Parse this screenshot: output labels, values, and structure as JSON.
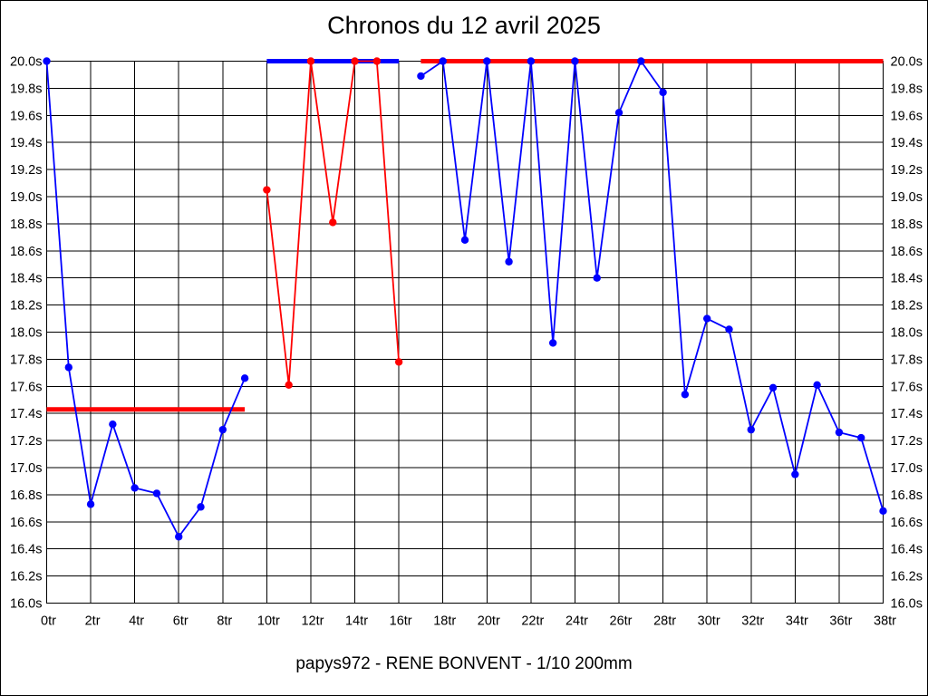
{
  "chart_data": {
    "type": "line",
    "title": "Chronos du 12 avril 2025",
    "caption": "papys972 - RENE BONVENT - 1/10 200mm",
    "x_unit": "tr",
    "y_unit": "s",
    "xlim": [
      0,
      38
    ],
    "ylim": [
      16.0,
      20.0
    ],
    "grid": true,
    "legend": "none",
    "x_ticks": [
      {
        "value": 0,
        "label": "0tr"
      },
      {
        "value": 2,
        "label": "2tr"
      },
      {
        "value": 4,
        "label": "4tr"
      },
      {
        "value": 6,
        "label": "6tr"
      },
      {
        "value": 8,
        "label": "8tr"
      },
      {
        "value": 10,
        "label": "10tr"
      },
      {
        "value": 12,
        "label": "12tr"
      },
      {
        "value": 14,
        "label": "14tr"
      },
      {
        "value": 16,
        "label": "16tr"
      },
      {
        "value": 18,
        "label": "18tr"
      },
      {
        "value": 20,
        "label": "20tr"
      },
      {
        "value": 22,
        "label": "22tr"
      },
      {
        "value": 24,
        "label": "24tr"
      },
      {
        "value": 26,
        "label": "26tr"
      },
      {
        "value": 28,
        "label": "28tr"
      },
      {
        "value": 30,
        "label": "30tr"
      },
      {
        "value": 32,
        "label": "32tr"
      },
      {
        "value": 34,
        "label": "34tr"
      },
      {
        "value": 36,
        "label": "36tr"
      },
      {
        "value": 38,
        "label": "38tr"
      }
    ],
    "y_ticks": [
      {
        "value": 20.0,
        "label": "20.0s"
      },
      {
        "value": 19.8,
        "label": "19.8s"
      },
      {
        "value": 19.6,
        "label": "19.6s"
      },
      {
        "value": 19.4,
        "label": "19.4s"
      },
      {
        "value": 19.2,
        "label": "19.2s"
      },
      {
        "value": 19.0,
        "label": "19.0s"
      },
      {
        "value": 18.8,
        "label": "18.8s"
      },
      {
        "value": 18.6,
        "label": "18.6s"
      },
      {
        "value": 18.4,
        "label": "18.4s"
      },
      {
        "value": 18.2,
        "label": "18.2s"
      },
      {
        "value": 18.0,
        "label": "18.0s"
      },
      {
        "value": 17.8,
        "label": "17.8s"
      },
      {
        "value": 17.6,
        "label": "17.6s"
      },
      {
        "value": 17.4,
        "label": "17.4s"
      },
      {
        "value": 17.2,
        "label": "17.2s"
      },
      {
        "value": 17.0,
        "label": "17.0s"
      },
      {
        "value": 16.8,
        "label": "16.8s"
      },
      {
        "value": 16.6,
        "label": "16.6s"
      },
      {
        "value": 16.4,
        "label": "16.4s"
      },
      {
        "value": 16.2,
        "label": "16.2s"
      },
      {
        "value": 16.0,
        "label": "16.0s"
      }
    ],
    "series_colors": {
      "blue": "#0000ff",
      "red": "#ff0000"
    },
    "segments": [
      {
        "series": "blue",
        "role": "plateau-laps-10-16",
        "x": [
          10,
          11,
          12,
          13,
          14,
          15,
          16
        ],
        "y": [
          20.0,
          20.0,
          20.0,
          20.0,
          20.0,
          20.0,
          20.0
        ],
        "thick": true,
        "markers": false
      },
      {
        "series": "red",
        "role": "flat-line-laps-0-9",
        "x": [
          0,
          9
        ],
        "y": [
          17.43,
          17.43
        ],
        "thick": true,
        "markers": false
      },
      {
        "series": "red",
        "role": "laps-10-16",
        "x": [
          10,
          11,
          12,
          13,
          14,
          15,
          16
        ],
        "y": [
          19.05,
          17.61,
          20.0,
          18.81,
          20.0,
          20.0,
          17.78
        ],
        "thick": false,
        "markers": true
      },
      {
        "series": "red",
        "role": "plateau-laps-17-38",
        "x": [
          17,
          38
        ],
        "y": [
          20.0,
          20.0
        ],
        "thick": true,
        "markers": false
      },
      {
        "series": "blue",
        "role": "laps-0-9",
        "x": [
          0,
          1,
          2,
          3,
          4,
          5,
          6,
          7,
          8,
          9
        ],
        "y": [
          20.0,
          17.74,
          16.73,
          17.32,
          16.85,
          16.81,
          16.49,
          16.71,
          17.28,
          17.66
        ],
        "thick": false,
        "markers": true
      },
      {
        "series": "blue",
        "role": "laps-17-38",
        "x": [
          17,
          18,
          19,
          20,
          21,
          22,
          23,
          24,
          25,
          26,
          27,
          28,
          29,
          30,
          31,
          32,
          33,
          34,
          35,
          36,
          37,
          38
        ],
        "y": [
          19.89,
          20.0,
          18.68,
          20.0,
          18.52,
          20.0,
          17.92,
          20.0,
          18.4,
          19.62,
          20.0,
          19.77,
          17.54,
          18.1,
          18.02,
          17.28,
          17.59,
          16.95,
          17.61,
          17.26,
          17.22,
          16.68
        ],
        "thick": false,
        "markers": true
      }
    ]
  }
}
